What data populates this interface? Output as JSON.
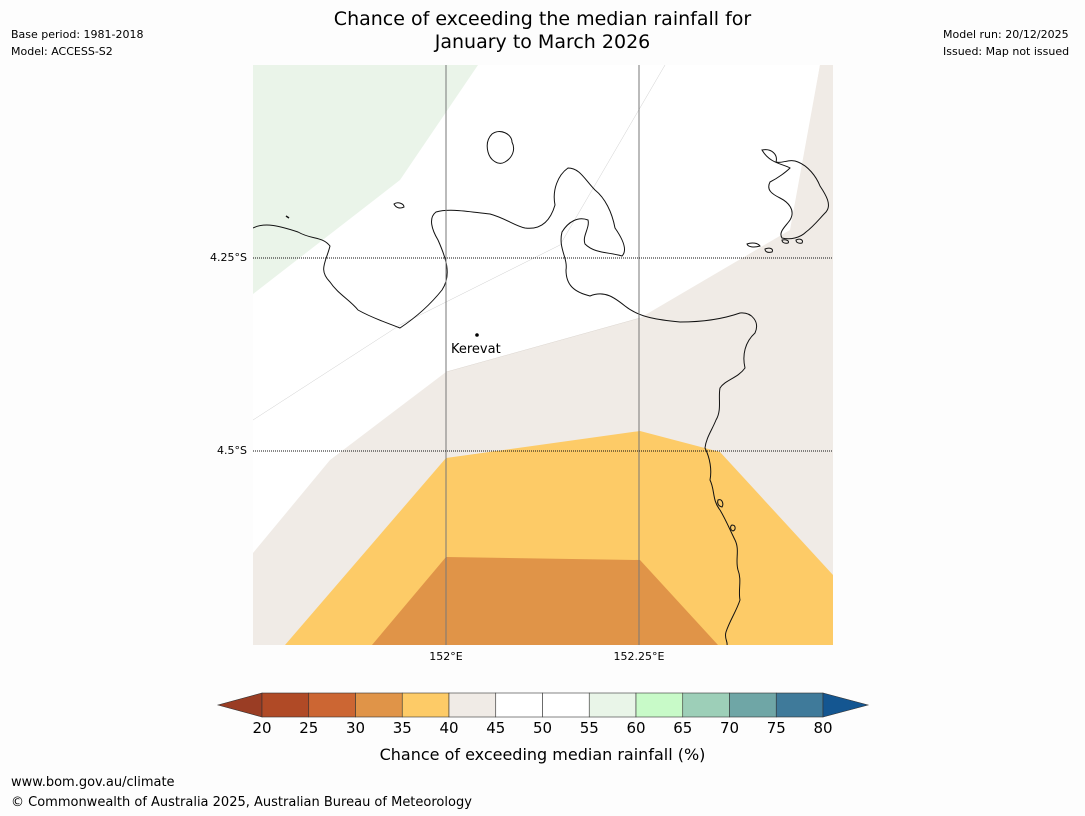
{
  "title": {
    "line1": "Chance of exceeding the median rainfall for",
    "line2": "January to March 2026"
  },
  "meta_left": {
    "base_period": "Base period: 1981-2018",
    "model": "Model: ACCESS-S2"
  },
  "meta_right": {
    "model_run": "Model run: 20/12/2025",
    "issued": "Issued: Map not issued"
  },
  "map": {
    "lat_labels": [
      "4.25°S",
      "4.5°S"
    ],
    "lon_labels": [
      "152°E",
      "152.25°E"
    ],
    "place": "Kerevat"
  },
  "colorbar": {
    "ticks": [
      "20",
      "25",
      "30",
      "35",
      "40",
      "45",
      "50",
      "55",
      "60",
      "65",
      "70",
      "75",
      "80"
    ],
    "colors": [
      "#b04a26",
      "#cc6633",
      "#e09448",
      "#fdcb67",
      "#f0ebe6",
      "#ffffff",
      "#ffffff",
      "#e9f5e8",
      "#c8fac8",
      "#9dcfb8",
      "#6fa6a6",
      "#3f7a9a"
    ],
    "under_color": "#9a3d24",
    "over_color": "#145691",
    "label": "Chance of exceeding median rainfall (%)"
  },
  "footer": {
    "url": "www.bom.gov.au/climate",
    "copyright": "© Commonwealth of Australia 2025, Australian Bureau of Meteorology"
  }
}
